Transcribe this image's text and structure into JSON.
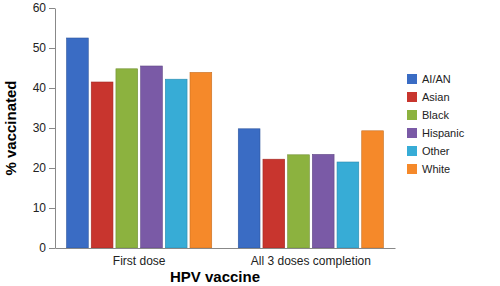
{
  "chart_data": {
    "type": "bar",
    "x_label": "HPV vaccine",
    "y_label": "% vaccinated",
    "categories": [
      "First dose",
      "All 3 doses completion"
    ],
    "series": [
      {
        "name": "AI/AN",
        "color": "#3a6cc4",
        "values": [
          52.5,
          29.8
        ]
      },
      {
        "name": "Asian",
        "color": "#c8352e",
        "values": [
          41.5,
          22.2
        ]
      },
      {
        "name": "Black",
        "color": "#8cb23f",
        "values": [
          44.8,
          23.3
        ]
      },
      {
        "name": "Hispanic",
        "color": "#7a5aa6",
        "values": [
          45.5,
          23.4
        ]
      },
      {
        "name": "Other",
        "color": "#37acd6",
        "values": [
          42.2,
          21.5
        ]
      },
      {
        "name": "White",
        "color": "#f5892a",
        "values": [
          43.9,
          29.3
        ]
      }
    ],
    "ylim": [
      0,
      60
    ],
    "yticks": [
      0,
      10,
      20,
      30,
      40,
      50,
      60
    ],
    "grid": false,
    "legend": "right"
  }
}
